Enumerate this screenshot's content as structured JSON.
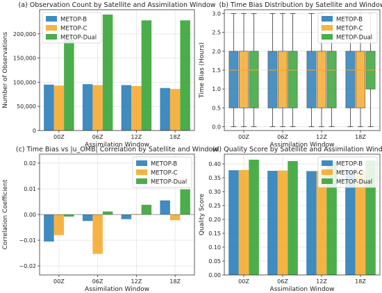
{
  "colors": {
    "b": "#1f77b4",
    "c": "#f5a623",
    "d": "#2ca02c"
  },
  "chart_data": [
    {
      "type": "bar",
      "title": "(a) Observation Count by Satellite and Assimilation Window",
      "xlabel": "Assimilation Window",
      "ylabel": "Number of Observations",
      "categories": [
        "00Z",
        "06Z",
        "12Z",
        "18Z"
      ],
      "ylim": [
        0,
        250000
      ],
      "yticks": [
        0,
        50000,
        100000,
        150000,
        200000
      ],
      "yticklabels": [
        "0",
        "50,000",
        "100,000",
        "150,000",
        "200,000"
      ],
      "grid": true,
      "legend": "top-left",
      "series": [
        {
          "name": "METOP-B",
          "values": [
            95000,
            96000,
            94000,
            88000
          ]
        },
        {
          "name": "METOP-C",
          "values": [
            93000,
            94000,
            92000,
            86000
          ]
        },
        {
          "name": "METOP-Dual",
          "values": [
            188000,
            240000,
            228000,
            228000
          ]
        }
      ]
    },
    {
      "type": "box",
      "title": "(b) Time Bias Distribution by Satellite and Window",
      "xlabel": "Assimilation Window",
      "ylabel": "Time Bias (Hours)",
      "categories": [
        "00Z",
        "06Z",
        "12Z",
        "18Z"
      ],
      "ylim": [
        -0.1,
        3.1
      ],
      "yticks": [
        0,
        0.5,
        1,
        1.5,
        2,
        2.5,
        3
      ],
      "yticklabels": [
        "0.0",
        "0.5",
        "1.0",
        "1.5",
        "2.0",
        "2.5",
        "3.0"
      ],
      "grid": true,
      "legend": "top-right",
      "series": [
        {
          "name": "METOP-B",
          "stats": [
            [
              0,
              0.5,
              1.5,
              2,
              3
            ],
            [
              0,
              0.5,
              1.5,
              2,
              3
            ],
            [
              0,
              0.5,
              1.5,
              2,
              3
            ],
            [
              0,
              0.5,
              1.5,
              2,
              3
            ]
          ]
        },
        {
          "name": "METOP-C",
          "stats": [
            [
              0,
              0.5,
              1.5,
              2,
              3
            ],
            [
              0,
              0.5,
              1.5,
              2,
              3
            ],
            [
              0,
              0.5,
              1.5,
              2,
              3
            ],
            [
              0,
              0.5,
              1.5,
              2,
              3
            ]
          ]
        },
        {
          "name": "METOP-Dual",
          "stats": [
            [
              0,
              0.5,
              1.5,
              2,
              3
            ],
            [
              0,
              0.5,
              1.5,
              2,
              3
            ],
            [
              0,
              0.5,
              1.5,
              2,
              3
            ],
            [
              0,
              1.0,
              1.5,
              2,
              3
            ]
          ]
        }
      ]
    },
    {
      "type": "bar",
      "title": "(c) Time Bias vs |u_OMB| Correlation by Satellite and Window",
      "xlabel": "Assimilation Window",
      "ylabel": "Correlation Coefficient",
      "categories": [
        "00Z",
        "06Z",
        "12Z",
        "18Z"
      ],
      "ylim": [
        -0.0235,
        0.0235
      ],
      "yticks": [
        -0.02,
        -0.01,
        0,
        0.01,
        0.02
      ],
      "yticklabels": [
        "−0.02",
        "−0.01",
        "0.00",
        "0.01",
        "0.02"
      ],
      "grid": true,
      "legend": "top-right",
      "series": [
        {
          "name": "METOP-B",
          "values": [
            -0.0105,
            -0.0025,
            -0.0018,
            0.0055
          ]
        },
        {
          "name": "METOP-C",
          "values": [
            -0.008,
            -0.0153,
            0.0002,
            -0.0022
          ]
        },
        {
          "name": "METOP-Dual",
          "values": [
            -0.0008,
            0.0012,
            0.0038,
            0.0098
          ]
        }
      ]
    },
    {
      "type": "bar",
      "title": "(d) Quality Score by Satellite and Assimilation Window",
      "xlabel": "Assimilation Window",
      "ylabel": "Quality Score",
      "categories": [
        "00Z",
        "06Z",
        "12Z",
        "18Z"
      ],
      "ylim": [
        0,
        0.435
      ],
      "yticks": [
        0,
        0.05,
        0.1,
        0.15,
        0.2,
        0.25,
        0.3,
        0.35,
        0.4
      ],
      "yticklabels": [
        "0.00",
        "0.05",
        "0.10",
        "0.15",
        "0.20",
        "0.25",
        "0.30",
        "0.35",
        "0.40"
      ],
      "grid": true,
      "legend": "top-right",
      "series": [
        {
          "name": "METOP-B",
          "values": [
            0.377,
            0.375,
            0.374,
            0.375
          ]
        },
        {
          "name": "METOP-C",
          "values": [
            0.378,
            0.376,
            0.375,
            0.376
          ]
        },
        {
          "name": "METOP-Dual",
          "values": [
            0.415,
            0.41,
            0.406,
            0.412
          ]
        }
      ]
    }
  ]
}
